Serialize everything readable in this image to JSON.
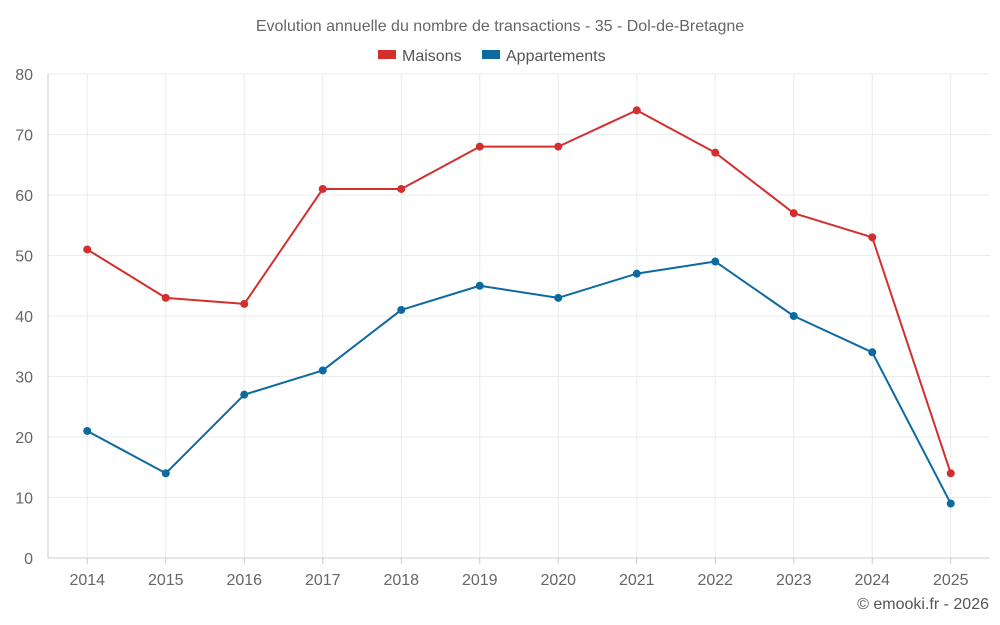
{
  "chart_data": {
    "type": "line",
    "title": "Evolution annuelle du nombre de transactions - 35 - Dol-de-Bretagne",
    "categories": [
      "2014",
      "2015",
      "2016",
      "2017",
      "2018",
      "2019",
      "2020",
      "2021",
      "2022",
      "2023",
      "2024",
      "2025"
    ],
    "series": [
      {
        "name": "Maisons",
        "color": "#d32f2f",
        "values": [
          51,
          43,
          42,
          61,
          61,
          68,
          68,
          74,
          67,
          57,
          53,
          14
        ]
      },
      {
        "name": "Appartements",
        "color": "#0d6aa1",
        "values": [
          21,
          14,
          27,
          31,
          41,
          45,
          43,
          47,
          49,
          40,
          34,
          9
        ]
      }
    ],
    "ylim": [
      0,
      80
    ],
    "yticks": [
      0,
      10,
      20,
      30,
      40,
      50,
      60,
      70,
      80
    ],
    "grid": true,
    "legend": "top-center",
    "xlabel": "",
    "ylabel": ""
  },
  "credit": "© emooki.fr - 2026"
}
